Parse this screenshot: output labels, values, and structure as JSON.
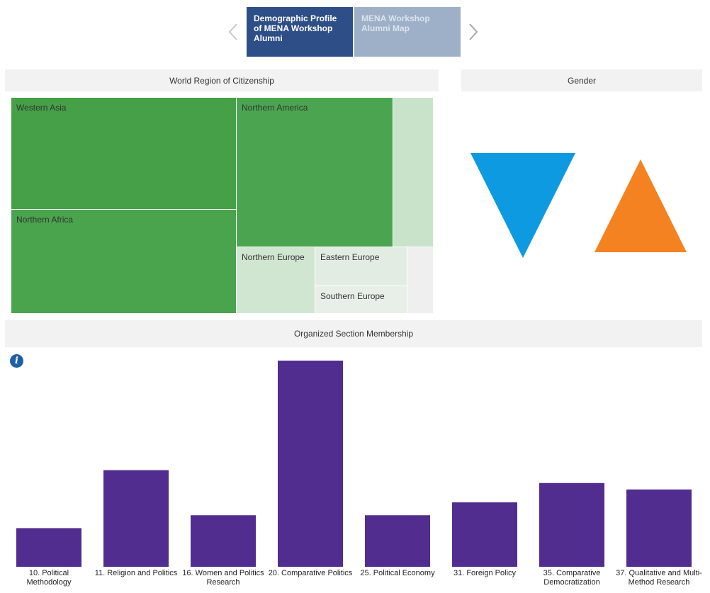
{
  "nav": {
    "tabs": [
      {
        "label": "Demographic Profile of MENA Workshop Alumni",
        "active": true
      },
      {
        "label": "MENA Workshop Alumni Map",
        "active": false
      }
    ],
    "prev_icon": "chevron-left-icon",
    "next_icon": "chevron-right-icon"
  },
  "region_panel": {
    "title": "World Region of Citizenship",
    "cells": [
      {
        "label": "Western Asia",
        "color": "#45a048"
      },
      {
        "label": "Northern America",
        "color": "#4ba550"
      },
      {
        "label": "",
        "color": "#c8e3c9"
      },
      {
        "label": "Northern Africa",
        "color": "#4aa34d"
      },
      {
        "label": "Northern Europe",
        "color": "#d0e6d1"
      },
      {
        "label": "Eastern Europe",
        "color": "#e3ece3"
      },
      {
        "label": "Southern Europe",
        "color": "#e8efe8"
      },
      {
        "label": "",
        "color": "#efefef"
      }
    ]
  },
  "gender_panel": {
    "title": "Gender",
    "shapes": [
      {
        "name": "down-triangle-icon",
        "color": "#0e9ae0"
      },
      {
        "name": "up-triangle-icon",
        "color": "#f58220"
      }
    ]
  },
  "section_panel": {
    "title": "Organized Section Membership",
    "info_icon": "info-icon",
    "info_text": "i"
  },
  "chart_data": {
    "type": "bar",
    "title": "Organized Section Membership",
    "categories": [
      "10. Political Methodology",
      "11. Religion and Politics",
      "16. Women and Politics Research",
      "20. Comparative Politics",
      "25. Political Economy",
      "31. Foreign Policy",
      "35. Comparative Democratization",
      "37. Qualitative and Multi-Method Research"
    ],
    "values": [
      6,
      15,
      8,
      32,
      8,
      10,
      13,
      12
    ],
    "ylim": [
      0,
      32
    ],
    "color": "#512d8f",
    "grid": false,
    "xlabel": "",
    "ylabel": ""
  }
}
